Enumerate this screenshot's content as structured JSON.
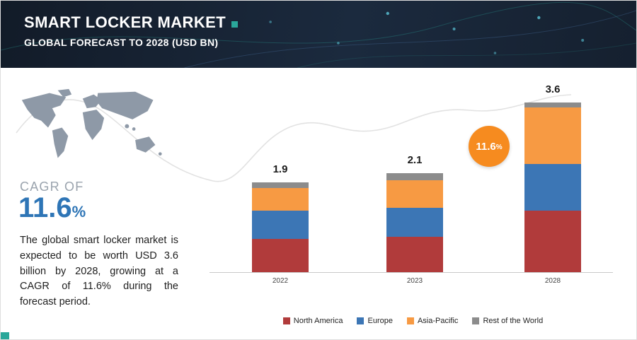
{
  "header": {
    "title": "SMART LOCKER MARKET",
    "subtitle": "GLOBAL FORECAST TO 2028 (USD BN)"
  },
  "sidebar": {
    "cagr_label": "CAGR OF",
    "cagr_value": "11.6",
    "percent_sign": "%",
    "description": "The global smart locker market is expected to be worth USD 3.6 billion by 2028, growing at a CAGR of 11.6% during the forecast period."
  },
  "badge": {
    "value": "11.6",
    "percent_sign": "%"
  },
  "colors": {
    "accent_teal": "#2aa79a",
    "cagr_blue": "#2e75b6",
    "badge_orange": "#f68b1f",
    "header_bg": "#16202e",
    "map_gray": "#8e99a7",
    "curve_gray": "#e2e2e2"
  },
  "chart_data": {
    "type": "bar",
    "stacked": true,
    "title": "",
    "xlabel": "",
    "ylabel": "",
    "value_unit": "USD BN",
    "categories": [
      "2022",
      "2023",
      "2028"
    ],
    "totals": [
      1.9,
      2.1,
      3.6
    ],
    "series": [
      {
        "name": "North America",
        "color": "#b13b3b",
        "values": [
          0.7,
          0.75,
          1.3
        ]
      },
      {
        "name": "Europe",
        "color": "#3c76b5",
        "values": [
          0.6,
          0.62,
          1.0
        ]
      },
      {
        "name": "Asia-Pacific",
        "color": "#f79a43",
        "values": [
          0.48,
          0.58,
          1.2
        ]
      },
      {
        "name": "Rest of the World",
        "color": "#8c8c8c",
        "values": [
          0.12,
          0.15,
          0.1
        ]
      }
    ],
    "ylim": [
      0,
      3.6
    ],
    "grid": false,
    "legend_position": "bottom",
    "annotations": [
      {
        "text": "11.6%",
        "shape": "orange-circle",
        "between": [
          "2023",
          "2028"
        ]
      }
    ]
  }
}
